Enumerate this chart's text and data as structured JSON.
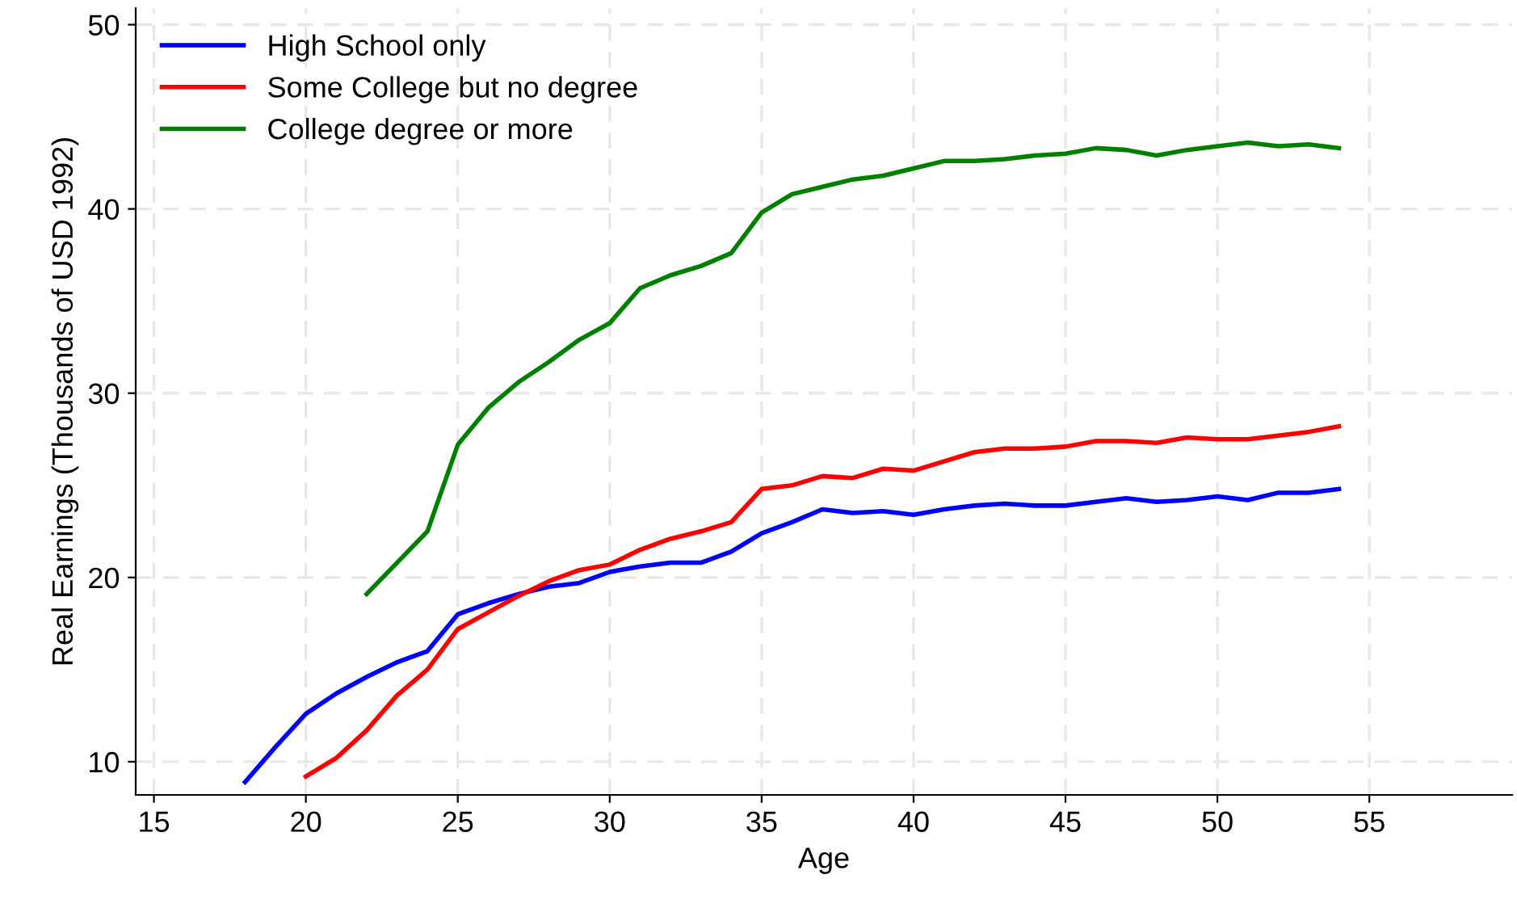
{
  "chart_data": {
    "type": "line",
    "xlabel": "Age",
    "ylabel": "Real Earnings (Thousands of USD 1992)",
    "xlim": [
      14.4,
      59.7
    ],
    "ylim": [
      8.2,
      50.9
    ],
    "xticks": [
      15,
      20,
      25,
      30,
      35,
      40,
      45,
      50,
      55
    ],
    "yticks": [
      10,
      20,
      30,
      40,
      50
    ],
    "grid": true,
    "legend": "top left",
    "line_style": "solid",
    "marker": "none",
    "series": [
      {
        "name": "High School only",
        "color": "#0000ff",
        "x": [
          18,
          19,
          20,
          21,
          22,
          23,
          24,
          25,
          26,
          27,
          28,
          29,
          30,
          31,
          32,
          33,
          34,
          35,
          36,
          37,
          38,
          39,
          40,
          41,
          42,
          43,
          44,
          45,
          46,
          47,
          48,
          49,
          50,
          51,
          52,
          53,
          54
        ],
        "values": [
          8.9,
          10.8,
          12.6,
          13.7,
          14.6,
          15.4,
          16.0,
          18.0,
          18.6,
          19.1,
          19.5,
          19.7,
          20.3,
          20.6,
          20.8,
          20.8,
          21.4,
          22.4,
          23.0,
          23.7,
          23.5,
          23.6,
          23.4,
          23.7,
          23.9,
          24.0,
          23.9,
          23.9,
          24.1,
          24.3,
          24.1,
          24.2,
          24.4,
          24.2,
          24.6,
          24.6,
          24.8
        ]
      },
      {
        "name": "Some College but no degree",
        "color": "#ff0000",
        "x": [
          20,
          21,
          22,
          23,
          24,
          25,
          26,
          27,
          28,
          29,
          30,
          31,
          32,
          33,
          34,
          35,
          36,
          37,
          38,
          39,
          40,
          41,
          42,
          43,
          44,
          45,
          46,
          47,
          48,
          49,
          50,
          51,
          52,
          53,
          54
        ],
        "values": [
          9.2,
          10.2,
          11.7,
          13.6,
          15.0,
          17.2,
          18.1,
          19.0,
          19.8,
          20.4,
          20.7,
          21.5,
          22.1,
          22.5,
          23.0,
          24.8,
          25.0,
          25.5,
          25.4,
          25.9,
          25.8,
          26.3,
          26.8,
          27.0,
          27.0,
          27.1,
          27.4,
          27.4,
          27.3,
          27.6,
          27.5,
          27.5,
          27.7,
          27.9,
          28.2
        ]
      },
      {
        "name": "College degree or more",
        "color": "#008000",
        "x": [
          22,
          23,
          24,
          25,
          26,
          27,
          28,
          29,
          30,
          31,
          32,
          33,
          34,
          35,
          36,
          37,
          38,
          39,
          40,
          41,
          42,
          43,
          44,
          45,
          46,
          47,
          48,
          49,
          50,
          51,
          52,
          53,
          54
        ],
        "values": [
          19.1,
          20.8,
          22.5,
          27.2,
          29.2,
          30.6,
          31.7,
          32.9,
          33.8,
          35.7,
          36.4,
          36.9,
          37.6,
          39.8,
          40.8,
          41.2,
          41.6,
          41.8,
          42.2,
          42.6,
          42.6,
          42.7,
          42.9,
          43.0,
          43.3,
          43.2,
          42.9,
          43.2,
          43.4,
          43.6,
          43.4,
          43.5,
          43.3
        ]
      }
    ]
  }
}
